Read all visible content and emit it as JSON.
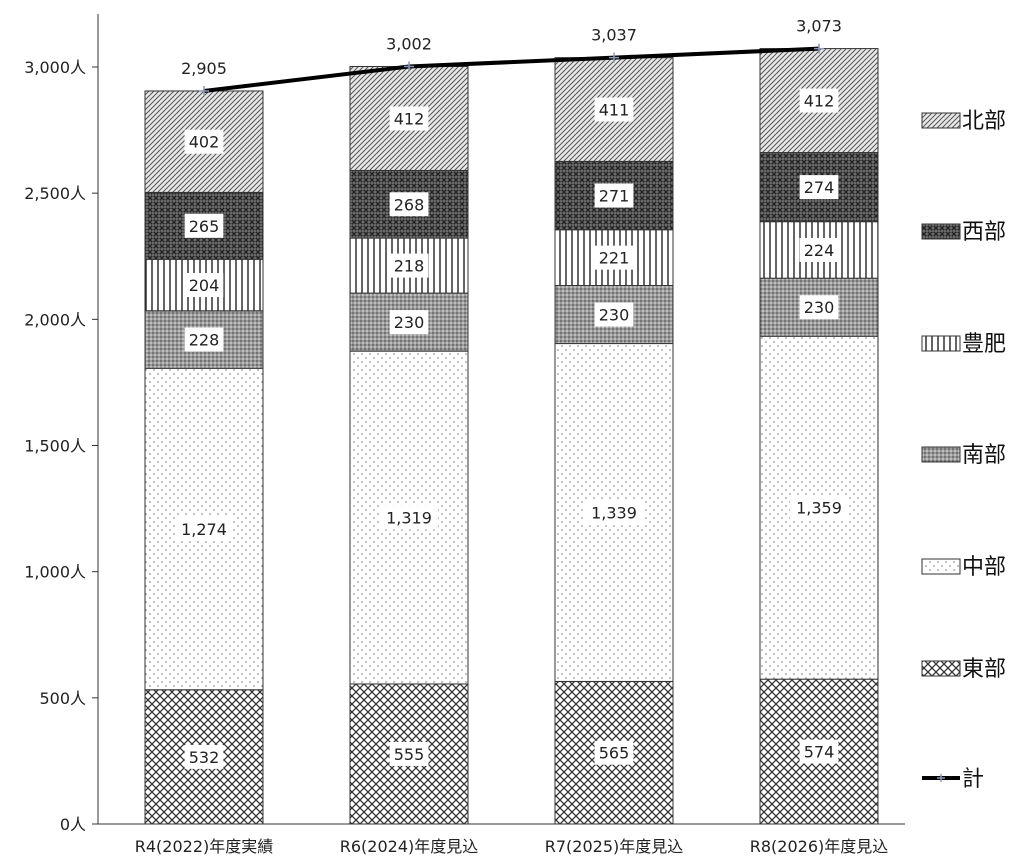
{
  "chart_data": {
    "type": "bar",
    "stacked": true,
    "categories": [
      "R4(2022)年度実績",
      "R6(2024)年度見込",
      "R7(2025)年度見込",
      "R8(2026)年度見込"
    ],
    "series": [
      {
        "name": "東部",
        "values": [
          532,
          555,
          565,
          574
        ],
        "pattern": "crosshatch"
      },
      {
        "name": "中部",
        "values": [
          1274,
          1319,
          1339,
          1359
        ],
        "pattern": "dots"
      },
      {
        "name": "南部",
        "values": [
          228,
          230,
          230,
          230
        ],
        "pattern": "dense-dots"
      },
      {
        "name": "豊肥",
        "values": [
          204,
          218,
          221,
          224
        ],
        "pattern": "vertical"
      },
      {
        "name": "西部",
        "values": [
          265,
          268,
          271,
          274
        ],
        "pattern": "dark-checker"
      },
      {
        "name": "北部",
        "values": [
          402,
          412,
          411,
          412
        ],
        "pattern": "diagonal"
      }
    ],
    "segment_labels": [
      [
        "532",
        "555",
        "565",
        "574"
      ],
      [
        "1,274",
        "1,319",
        "1,339",
        "1,359"
      ],
      [
        "228",
        "230",
        "230",
        "230"
      ],
      [
        "204",
        "218",
        "221",
        "224"
      ],
      [
        "265",
        "268",
        "271",
        "274"
      ],
      [
        "402",
        "412",
        "411",
        "412"
      ]
    ],
    "total": {
      "name": "計",
      "values": [
        2905,
        3002,
        3037,
        3073
      ],
      "labels": [
        "2,905",
        "3,002",
        "3,037",
        "3,073"
      ],
      "type": "line"
    },
    "y_ticks": [
      0,
      500,
      1000,
      1500,
      2000,
      2500,
      3000
    ],
    "y_tick_labels": [
      "0人",
      "500人",
      "1,000人",
      "1,500人",
      "2,000人",
      "2,500人",
      "3,000人"
    ],
    "ylim": [
      0,
      3000
    ],
    "legend_order": [
      "北部",
      "西部",
      "豊肥",
      "南部",
      "中部",
      "東部",
      "計"
    ],
    "legend_position": "right",
    "grid": false
  }
}
